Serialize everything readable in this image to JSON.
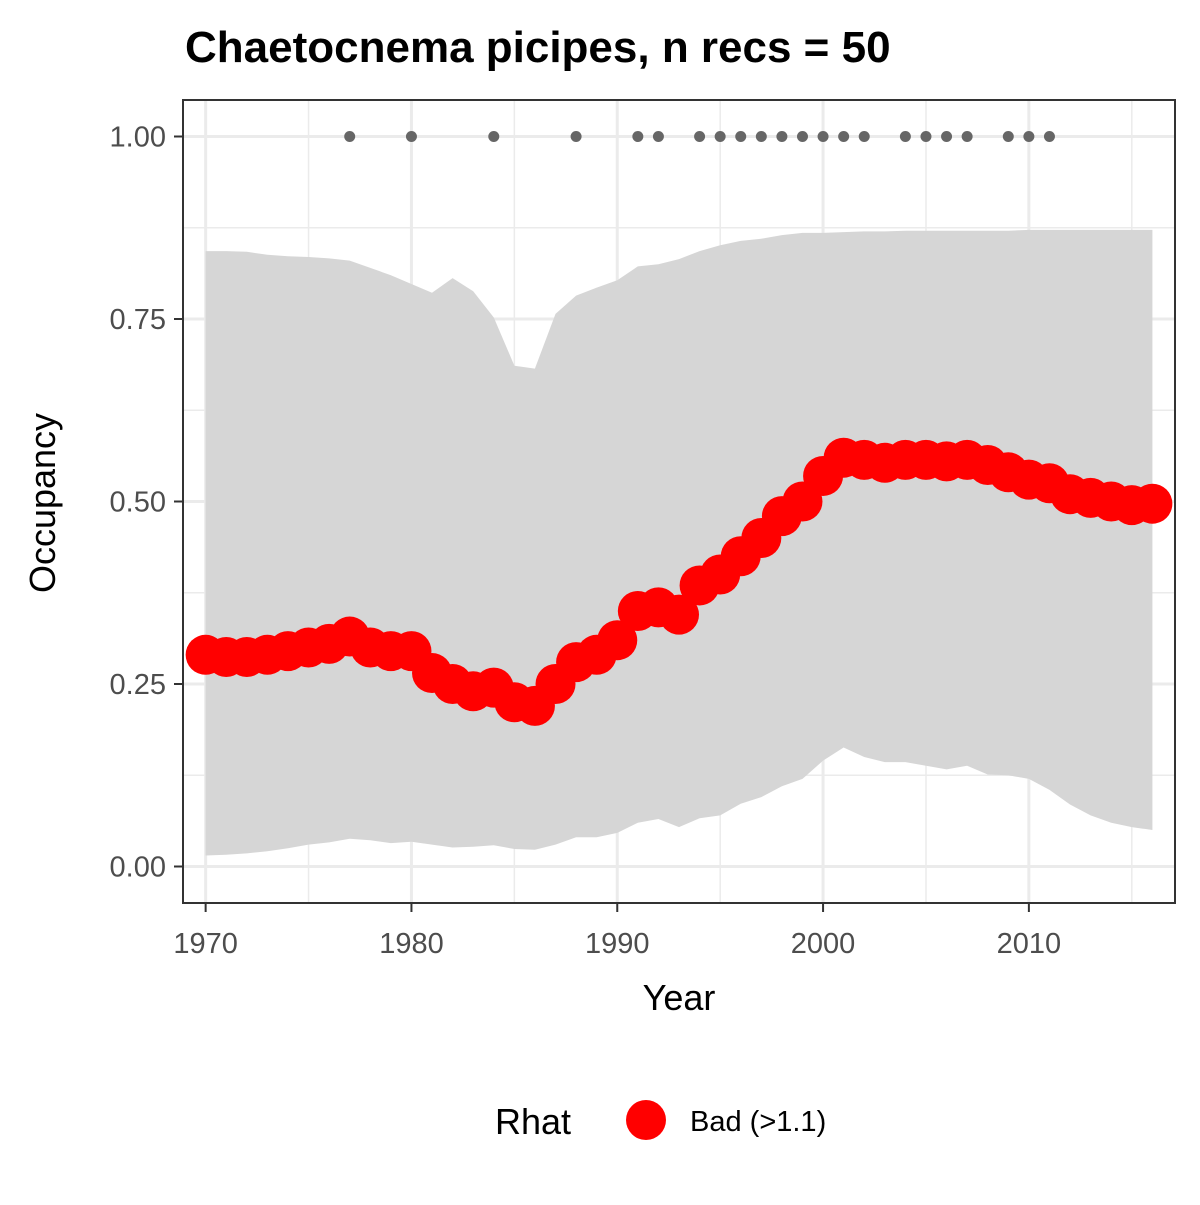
{
  "chart_data": {
    "type": "line",
    "title": "Chaetocnema picipes, n recs = 50",
    "xlabel": "Year",
    "ylabel": "Occupancy",
    "xlim": [
      1968.9,
      2017.1
    ],
    "ylim": [
      -0.05,
      1.05
    ],
    "x_ticks": [
      1970,
      1980,
      1990,
      2000,
      2010
    ],
    "x_tick_labels": [
      "1970",
      "1980",
      "1990",
      "2000",
      "2010"
    ],
    "y_ticks": [
      0,
      0.25,
      0.5,
      0.75,
      1.0
    ],
    "y_tick_labels": [
      "0.00",
      "0.25",
      "0.50",
      "0.75",
      "1.00"
    ],
    "grid": true,
    "legend": {
      "title": "Rhat",
      "placement": "bottom",
      "entries": [
        {
          "label": "Bad (>1.1)",
          "color": "#ff0000"
        }
      ]
    },
    "colors": {
      "line": "#ff0000",
      "ribbon": "#d6d6d6",
      "record_points": "#666666",
      "grid": "#ebebeb",
      "border": "#333333"
    },
    "series": [
      {
        "name": "Bad (>1.1)",
        "x": [
          1970,
          1971,
          1972,
          1973,
          1974,
          1975,
          1976,
          1977,
          1978,
          1979,
          1980,
          1981,
          1982,
          1983,
          1984,
          1985,
          1986,
          1987,
          1988,
          1989,
          1990,
          1991,
          1992,
          1993,
          1994,
          1995,
          1996,
          1997,
          1998,
          1999,
          2000,
          2001,
          2002,
          2003,
          2004,
          2005,
          2006,
          2007,
          2008,
          2009,
          2010,
          2011,
          2012,
          2013,
          2014,
          2015,
          2016
        ],
        "y": [
          0.29,
          0.287,
          0.287,
          0.29,
          0.295,
          0.3,
          0.305,
          0.315,
          0.3,
          0.295,
          0.295,
          0.265,
          0.25,
          0.24,
          0.245,
          0.225,
          0.22,
          0.25,
          0.28,
          0.29,
          0.31,
          0.35,
          0.355,
          0.345,
          0.385,
          0.4,
          0.425,
          0.45,
          0.48,
          0.5,
          0.535,
          0.56,
          0.557,
          0.553,
          0.557,
          0.557,
          0.555,
          0.557,
          0.55,
          0.54,
          0.53,
          0.525,
          0.51,
          0.505,
          0.5,
          0.495,
          0.497
        ]
      }
    ],
    "ribbon": {
      "x": [
        1970,
        1971,
        1972,
        1973,
        1974,
        1975,
        1976,
        1977,
        1978,
        1979,
        1980,
        1981,
        1982,
        1983,
        1984,
        1985,
        1986,
        1987,
        1988,
        1989,
        1990,
        1991,
        1992,
        1993,
        1994,
        1995,
        1996,
        1997,
        1998,
        1999,
        2000,
        2001,
        2002,
        2003,
        2004,
        2005,
        2006,
        2007,
        2008,
        2009,
        2010,
        2011,
        2012,
        2013,
        2014,
        2015,
        2016
      ],
      "lower": [
        0.015,
        0.016,
        0.018,
        0.021,
        0.025,
        0.03,
        0.033,
        0.038,
        0.036,
        0.032,
        0.034,
        0.03,
        0.026,
        0.027,
        0.029,
        0.024,
        0.023,
        0.03,
        0.04,
        0.04,
        0.046,
        0.06,
        0.065,
        0.054,
        0.066,
        0.07,
        0.086,
        0.095,
        0.11,
        0.12,
        0.145,
        0.163,
        0.15,
        0.143,
        0.143,
        0.138,
        0.133,
        0.138,
        0.126,
        0.125,
        0.12,
        0.105,
        0.085,
        0.07,
        0.06,
        0.054,
        0.05
      ],
      "upper": [
        0.843,
        0.843,
        0.842,
        0.838,
        0.836,
        0.835,
        0.833,
        0.83,
        0.82,
        0.81,
        0.798,
        0.786,
        0.806,
        0.788,
        0.752,
        0.686,
        0.682,
        0.757,
        0.782,
        0.793,
        0.803,
        0.822,
        0.825,
        0.832,
        0.843,
        0.851,
        0.857,
        0.86,
        0.865,
        0.868,
        0.868,
        0.869,
        0.87,
        0.87,
        0.871,
        0.871,
        0.871,
        0.871,
        0.871,
        0.871,
        0.872,
        0.872,
        0.872,
        0.872,
        0.872,
        0.872,
        0.872
      ]
    },
    "record_points": {
      "y": 1.0,
      "x": [
        1977,
        1980,
        1984,
        1988,
        1991,
        1992,
        1994,
        1995,
        1996,
        1997,
        1998,
        1999,
        2000,
        2001,
        2002,
        2004,
        2005,
        2006,
        2007,
        2009,
        2010,
        2011
      ]
    }
  }
}
